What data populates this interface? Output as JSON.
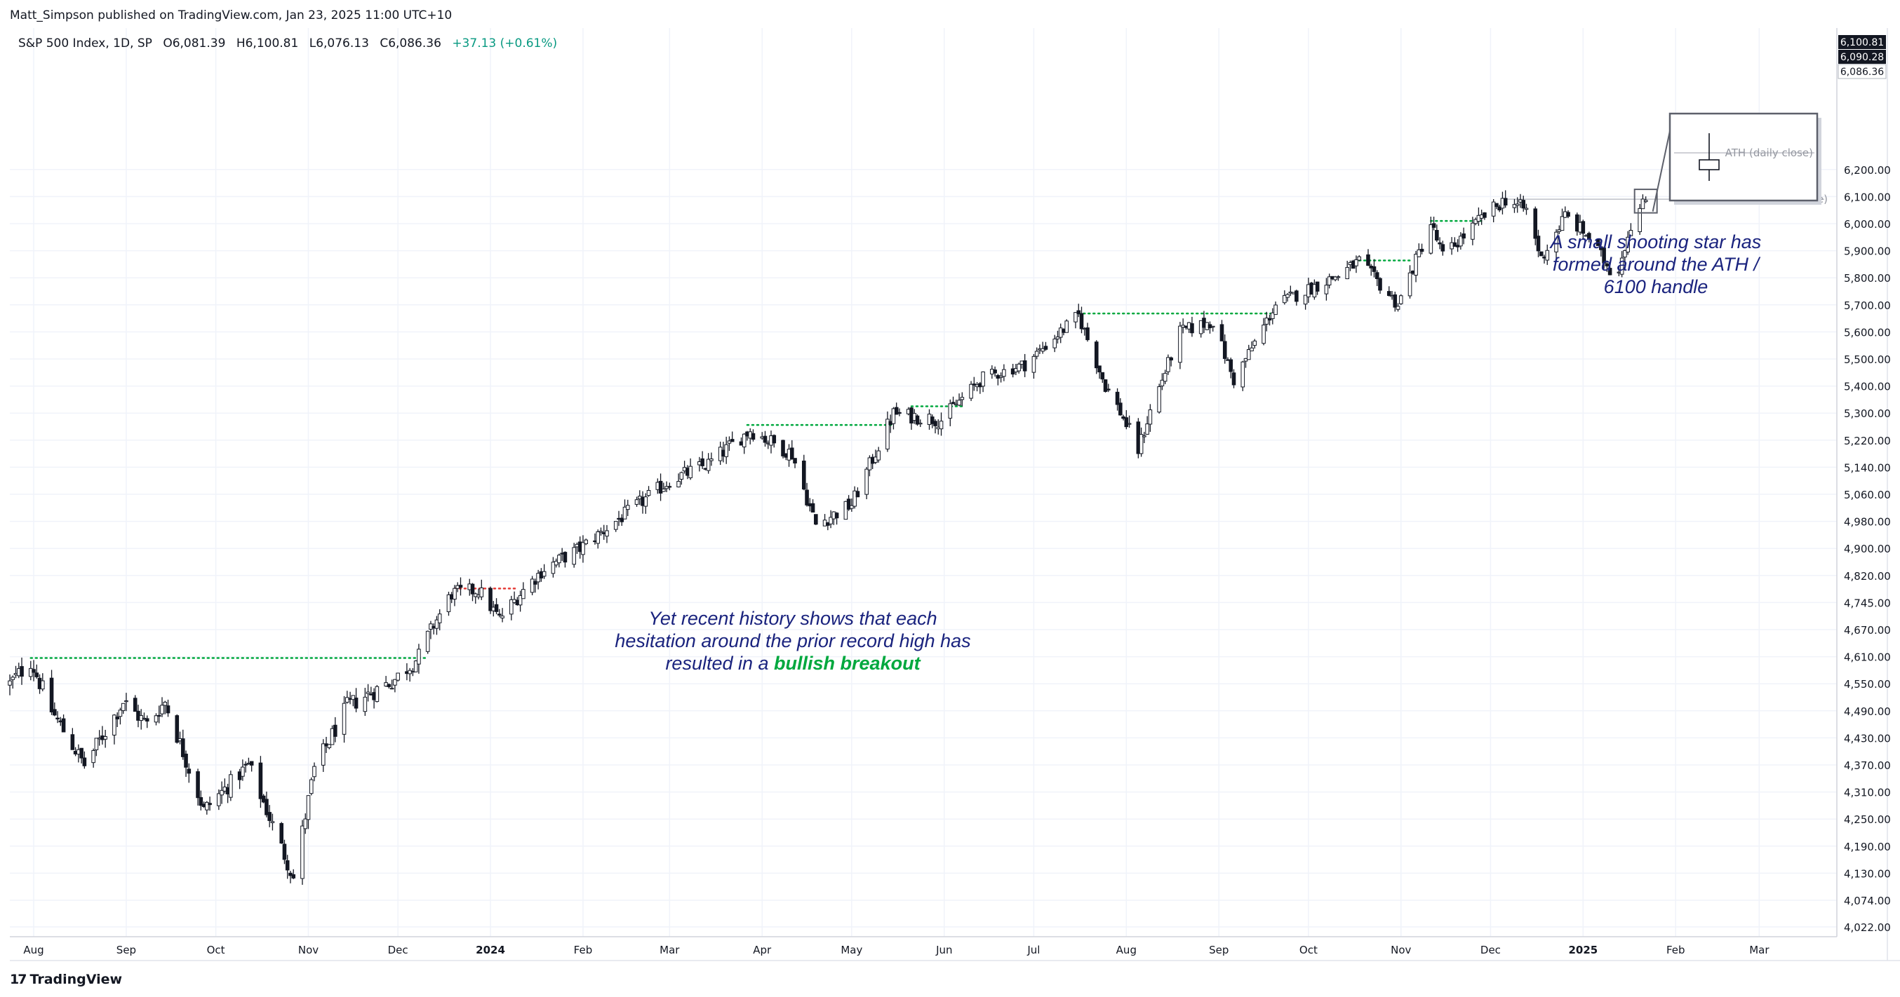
{
  "header": {
    "publisher": "Matt_Simpson published on TradingView.com, Jan 23, 2025 11:00 UTC+10",
    "symbol": "S&P 500 Index, 1D, SP",
    "open": "O6,081.39",
    "high": "H6,100.81",
    "low": "L6,076.13",
    "close": "C6,086.36",
    "change": "+37.13 (+0.61%)"
  },
  "footer": {
    "logo_text": "TradingView",
    "logo_mark": "17"
  },
  "annotations": {
    "left_line1": "Yet recent history shows that each",
    "left_line2": "hesitation around the prior record high has",
    "left_line3_prefix": "resulted in a ",
    "left_line3_highlight": "bullish breakout",
    "right_line1": "A small shooting star has",
    "right_line2": "formed around the ATH /",
    "right_line3": "6100 handle"
  },
  "colors": {
    "candle_body": "#ffffff",
    "candle_outline": "#131722",
    "resistance_dotted": "#00a83e",
    "resistance_red": "#e53935",
    "annotation_text": "#1a237e",
    "highlight_text": "#00a83e",
    "grid": "#f0f3fa",
    "ath_line": "#b2b5be"
  },
  "chart_data": {
    "type": "candlestick",
    "title": "S&P 500 Index, 1D, SP",
    "xlabel": "",
    "ylabel": "",
    "ylim": [
      4000,
      6220
    ],
    "y_ticks": [
      4022.0,
      4074.0,
      4130.0,
      4190.0,
      4250.0,
      4310.0,
      4370.0,
      4430.0,
      4490.0,
      4550.0,
      4610.0,
      4670.0,
      4745.0,
      4820.0,
      4900.0,
      4980.0,
      5060.0,
      5140.0,
      5220.0,
      5300.0,
      5400.0,
      5500.0,
      5600.0,
      5700.0,
      5800.0,
      5900.0,
      6000.0,
      6100.0,
      6200.0
    ],
    "y_tick_labels": [
      "4,022.00",
      "4,074.00",
      "4,130.00",
      "4,190.00",
      "4,250.00",
      "4,310.00",
      "4,370.00",
      "4,430.00",
      "4,490.00",
      "4,550.00",
      "4,610.00",
      "4,670.00",
      "4,745.00",
      "4,820.00",
      "4,900.00",
      "4,980.00",
      "5,060.00",
      "5,140.00",
      "5,220.00",
      "5,300.00",
      "5,400.00",
      "5,500.00",
      "5,600.00",
      "5,700.00",
      "5,800.00",
      "5,900.00",
      "6,000.00",
      "6,100.00",
      "6,200.00"
    ],
    "price_labels": [
      {
        "value": 6100.81,
        "text": "6,100.81"
      },
      {
        "value": 6090.28,
        "text": "6,090.28"
      },
      {
        "value": 6086.36,
        "text": "6,086.36"
      }
    ],
    "x_range": [
      "2023-07-24",
      "2025-03-27"
    ],
    "x_ticks": [
      {
        "date": "2023-08-01",
        "label": "Aug",
        "bold": false
      },
      {
        "date": "2023-09-01",
        "label": "Sep",
        "bold": false
      },
      {
        "date": "2023-10-01",
        "label": "Oct",
        "bold": false
      },
      {
        "date": "2023-11-01",
        "label": "Nov",
        "bold": false
      },
      {
        "date": "2023-12-01",
        "label": "Dec",
        "bold": false
      },
      {
        "date": "2024-01-01",
        "label": "2024",
        "bold": true
      },
      {
        "date": "2024-02-01",
        "label": "Feb",
        "bold": false
      },
      {
        "date": "2024-03-01",
        "label": "Mar",
        "bold": false
      },
      {
        "date": "2024-04-01",
        "label": "Apr",
        "bold": false
      },
      {
        "date": "2024-05-01",
        "label": "May",
        "bold": false
      },
      {
        "date": "2024-06-01",
        "label": "Jun",
        "bold": false
      },
      {
        "date": "2024-07-01",
        "label": "Jul",
        "bold": false
      },
      {
        "date": "2024-08-01",
        "label": "Aug",
        "bold": false
      },
      {
        "date": "2024-09-01",
        "label": "Sep",
        "bold": false
      },
      {
        "date": "2024-10-01",
        "label": "Oct",
        "bold": false
      },
      {
        "date": "2024-11-01",
        "label": "Nov",
        "bold": false
      },
      {
        "date": "2024-12-01",
        "label": "Dec",
        "bold": false
      },
      {
        "date": "2025-01-01",
        "label": "2025",
        "bold": true
      },
      {
        "date": "2025-02-01",
        "label": "Feb",
        "bold": false
      },
      {
        "date": "2025-03-01",
        "label": "Mar",
        "bold": false
      }
    ],
    "price_path": [
      [
        "2023-07-24",
        4550
      ],
      [
        "2023-07-31",
        4600
      ],
      [
        "2023-08-07",
        4490
      ],
      [
        "2023-08-18",
        4370
      ],
      [
        "2023-08-31",
        4510
      ],
      [
        "2023-09-08",
        4460
      ],
      [
        "2023-09-14",
        4510
      ],
      [
        "2023-09-27",
        4270
      ],
      [
        "2023-10-12",
        4370
      ],
      [
        "2023-10-27",
        4120
      ],
      [
        "2023-11-03",
        4360
      ],
      [
        "2023-11-14",
        4500
      ],
      [
        "2023-11-30",
        4560
      ],
      [
        "2023-12-08",
        4610
      ],
      [
        "2023-12-19",
        4770
      ],
      [
        "2023-12-28",
        4780
      ],
      [
        "2024-01-04",
        4700
      ],
      [
        "2024-01-12",
        4780
      ],
      [
        "2024-01-19",
        4840
      ],
      [
        "2024-01-31",
        4900
      ],
      [
        "2024-02-15",
        5000
      ],
      [
        "2024-03-01",
        5100
      ],
      [
        "2024-03-14",
        5150
      ],
      [
        "2024-03-28",
        5250
      ],
      [
        "2024-04-11",
        5180
      ],
      [
        "2024-04-19",
        4970
      ],
      [
        "2024-05-01",
        5030
      ],
      [
        "2024-05-15",
        5300
      ],
      [
        "2024-05-31",
        5280
      ],
      [
        "2024-06-14",
        5430
      ],
      [
        "2024-06-28",
        5480
      ],
      [
        "2024-07-16",
        5660
      ],
      [
        "2024-07-25",
        5400
      ],
      [
        "2024-08-05",
        5190
      ],
      [
        "2024-08-19",
        5600
      ],
      [
        "2024-08-30",
        5640
      ],
      [
        "2024-09-06",
        5420
      ],
      [
        "2024-09-20",
        5700
      ],
      [
        "2024-10-11",
        5810
      ],
      [
        "2024-10-18",
        5860
      ],
      [
        "2024-10-31",
        5700
      ],
      [
        "2024-11-11",
        6000
      ],
      [
        "2024-11-15",
        5880
      ],
      [
        "2024-11-29",
        6030
      ],
      [
        "2024-12-06",
        6090
      ],
      [
        "2024-12-13",
        6050
      ],
      [
        "2024-12-18",
        5870
      ],
      [
        "2024-12-26",
        6030
      ],
      [
        "2025-01-03",
        5950
      ],
      [
        "2025-01-10",
        5830
      ],
      [
        "2025-01-13",
        5840
      ],
      [
        "2025-01-17",
        6000
      ],
      [
        "2025-01-22",
        6086
      ]
    ],
    "last_candle": {
      "date": "2025-01-22",
      "open": 6081.39,
      "high": 6100.81,
      "low": 6076.13,
      "close": 6086.36
    },
    "resistance_lines": [
      {
        "from": "2023-07-31",
        "to": "2023-12-11",
        "value": 4607,
        "color": "green"
      },
      {
        "from": "2023-12-20",
        "to": "2024-01-10",
        "value": 4784,
        "color": "red"
      },
      {
        "from": "2024-03-27",
        "to": "2024-05-15",
        "value": 5265,
        "color": "green"
      },
      {
        "from": "2024-05-21",
        "to": "2024-06-07",
        "value": 5325,
        "color": "green"
      },
      {
        "from": "2024-07-16",
        "to": "2024-09-20",
        "value": 5668,
        "color": "green"
      },
      {
        "from": "2024-10-18",
        "to": "2024-11-05",
        "value": 5864,
        "color": "green"
      },
      {
        "from": "2024-11-11",
        "to": "2024-11-29",
        "value": 6010,
        "color": "green"
      }
    ],
    "ath_line": {
      "from": "2024-12-06",
      "to": "2025-03-25",
      "value": 6090.28,
      "label": "ATH (daily close)"
    },
    "inset_label": "ATH (daily close)",
    "grid": true,
    "legend": "none"
  }
}
